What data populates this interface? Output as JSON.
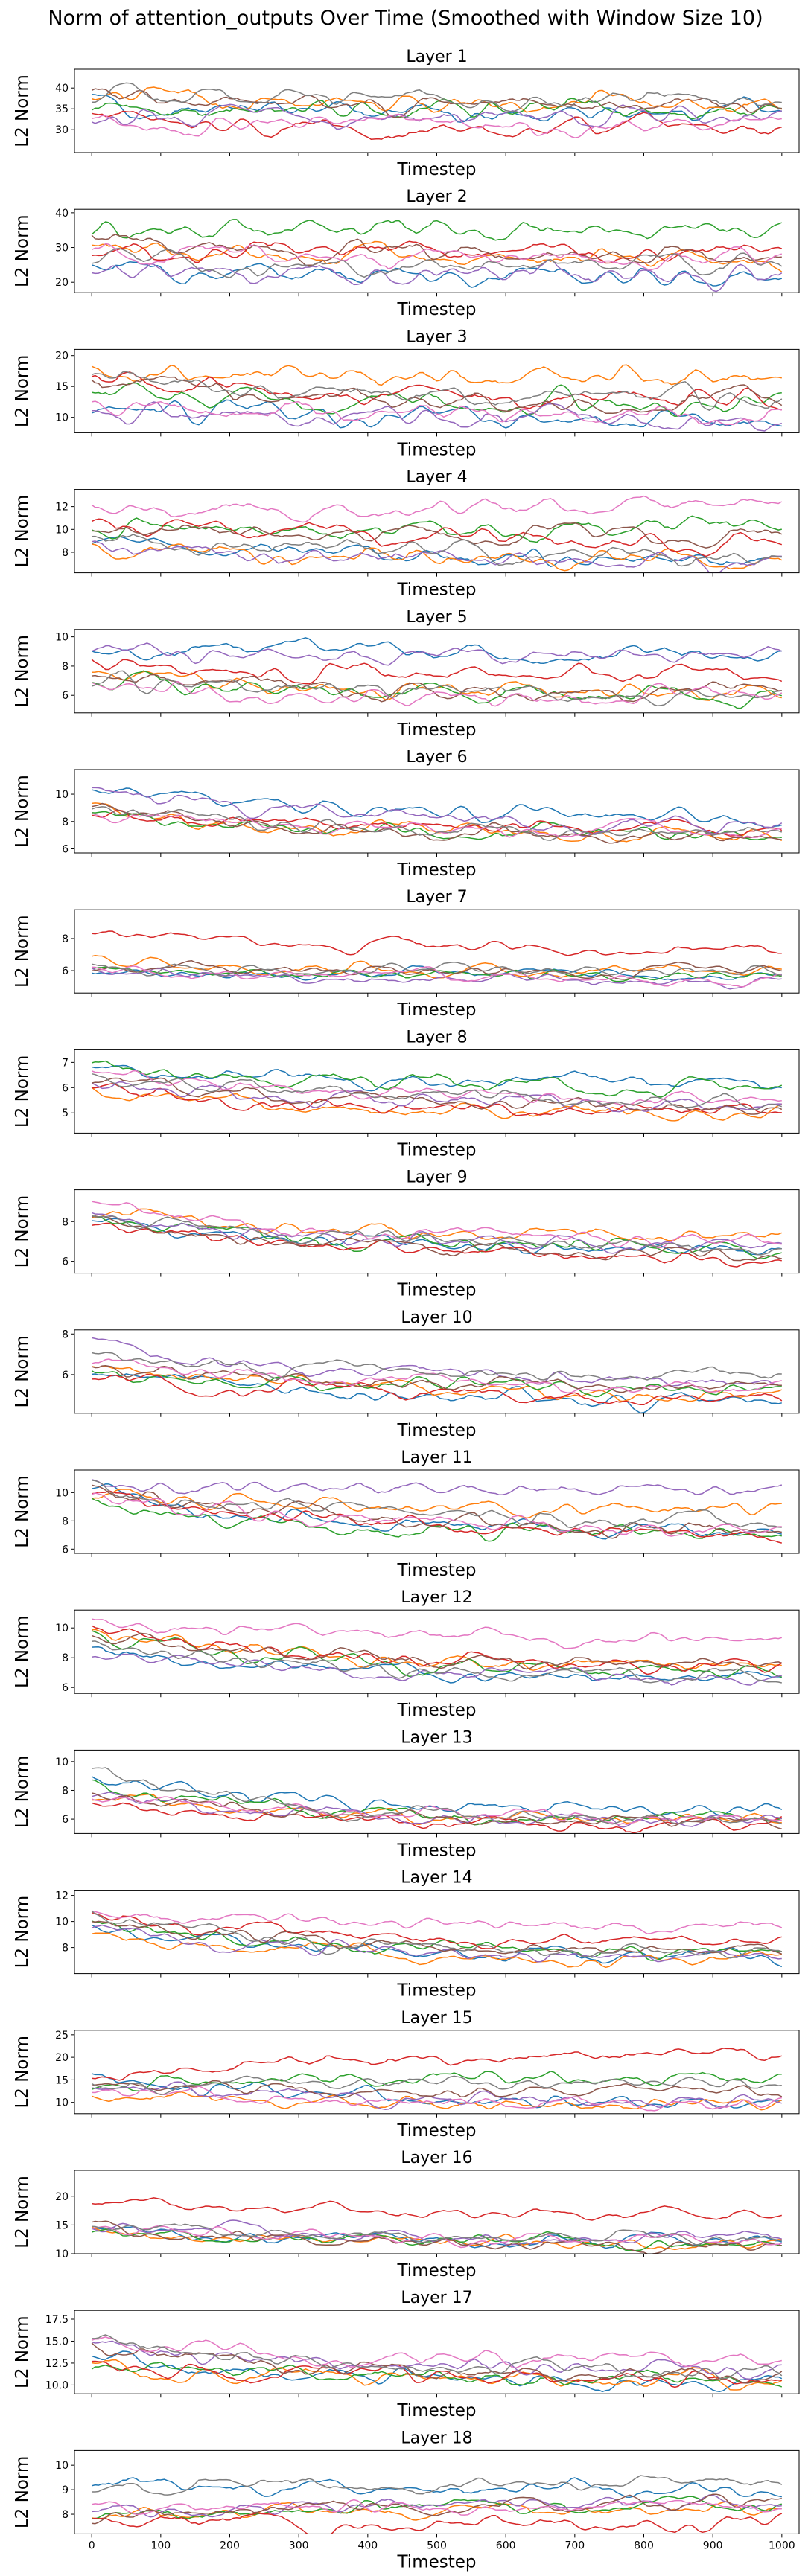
{
  "figure": {
    "title": "Norm of attention_outputs Over Time (Smoothed with Window Size 10)"
  },
  "colors": [
    "#1f77b4",
    "#ff7f0e",
    "#2ca02c",
    "#d62728",
    "#9467bd",
    "#8c564b",
    "#e377c2",
    "#7f7f7f"
  ],
  "chart_data": [
    {
      "type": "line",
      "title": "Layer 1",
      "xlabel": "Timestep",
      "ylabel": "L2 Norm",
      "xlim": [
        -25,
        1025
      ],
      "ylim": [
        24.5,
        44.5
      ],
      "x_ticks": [
        0,
        100,
        200,
        300,
        400,
        500,
        600,
        700,
        800,
        900,
        1000
      ],
      "y_ticks": [
        30,
        35,
        40
      ],
      "show_x_tick_labels": false,
      "noise": 2.0,
      "series": [
        {
          "start": 36,
          "end": 34
        },
        {
          "start": 38,
          "end": 37
        },
        {
          "start": 36,
          "end": 35
        },
        {
          "start": 33,
          "end": 30
        },
        {
          "start": 34,
          "end": 33
        },
        {
          "start": 38,
          "end": 36
        },
        {
          "start": 32,
          "end": 31
        },
        {
          "start": 39,
          "end": 37
        }
      ]
    },
    {
      "type": "line",
      "title": "Layer 2",
      "xlabel": "Timestep",
      "ylabel": "L2 Norm",
      "xlim": [
        -25,
        1025
      ],
      "ylim": [
        17,
        41
      ],
      "x_ticks": [
        0,
        100,
        200,
        300,
        400,
        500,
        600,
        700,
        800,
        900,
        1000
      ],
      "y_ticks": [
        20,
        30,
        40
      ],
      "show_x_tick_labels": false,
      "noise": 2.5,
      "series": [
        {
          "start": 25,
          "end": 22
        },
        {
          "start": 30,
          "end": 27
        },
        {
          "start": 34,
          "end": 36
        },
        {
          "start": 28,
          "end": 29
        },
        {
          "start": 24,
          "end": 22
        },
        {
          "start": 32,
          "end": 28
        },
        {
          "start": 30,
          "end": 26
        },
        {
          "start": 27,
          "end": 25
        }
      ]
    },
    {
      "type": "line",
      "title": "Layer 3",
      "xlabel": "Timestep",
      "ylabel": "L2 Norm",
      "xlim": [
        -25,
        1025
      ],
      "ylim": [
        7.5,
        21
      ],
      "x_ticks": [
        0,
        100,
        200,
        300,
        400,
        500,
        600,
        700,
        800,
        900,
        1000
      ],
      "y_ticks": [
        10,
        15,
        20
      ],
      "show_x_tick_labels": false,
      "noise": 1.4,
      "series": [
        {
          "start": 12,
          "end": 9.5
        },
        {
          "start": 18,
          "end": 16
        },
        {
          "start": 15,
          "end": 12
        },
        {
          "start": 16,
          "end": 13
        },
        {
          "start": 11,
          "end": 9.5
        },
        {
          "start": 16,
          "end": 12
        },
        {
          "start": 13,
          "end": 10
        },
        {
          "start": 17,
          "end": 13
        }
      ]
    },
    {
      "type": "line",
      "title": "Layer 4",
      "xlabel": "Timestep",
      "ylabel": "L2 Norm",
      "xlim": [
        -25,
        1025
      ],
      "ylim": [
        6.2,
        13.5
      ],
      "x_ticks": [
        0,
        100,
        200,
        300,
        400,
        500,
        600,
        700,
        800,
        900,
        1000
      ],
      "y_ticks": [
        8,
        10,
        12
      ],
      "show_x_tick_labels": false,
      "noise": 0.7,
      "series": [
        {
          "start": 9,
          "end": 7.2
        },
        {
          "start": 9,
          "end": 7.4
        },
        {
          "start": 10.5,
          "end": 10
        },
        {
          "start": 10,
          "end": 9
        },
        {
          "start": 8.5,
          "end": 7.2
        },
        {
          "start": 10.5,
          "end": 9.5
        },
        {
          "start": 12,
          "end": 12
        },
        {
          "start": 9.5,
          "end": 7.5
        }
      ]
    },
    {
      "type": "line",
      "title": "Layer 5",
      "xlabel": "Timestep",
      "ylabel": "L2 Norm",
      "xlim": [
        -25,
        1025
      ],
      "ylim": [
        4.8,
        10.5
      ],
      "x_ticks": [
        0,
        100,
        200,
        300,
        400,
        500,
        600,
        700,
        800,
        900,
        1000
      ],
      "y_ticks": [
        6,
        8,
        10
      ],
      "show_x_tick_labels": false,
      "noise": 0.5,
      "series": [
        {
          "start": 9.5,
          "end": 8.8
        },
        {
          "start": 7.5,
          "end": 6
        },
        {
          "start": 7,
          "end": 6
        },
        {
          "start": 8,
          "end": 7.5
        },
        {
          "start": 9,
          "end": 8.8
        },
        {
          "start": 7.5,
          "end": 6.2
        },
        {
          "start": 6.5,
          "end": 5.8
        },
        {
          "start": 7,
          "end": 6.2
        }
      ]
    },
    {
      "type": "line",
      "title": "Layer 6",
      "xlabel": "Timestep",
      "ylabel": "L2 Norm",
      "xlim": [
        -25,
        1025
      ],
      "ylim": [
        5.7,
        11.8
      ],
      "x_ticks": [
        0,
        100,
        200,
        300,
        400,
        500,
        600,
        700,
        800,
        900,
        1000
      ],
      "y_ticks": [
        6,
        8,
        10
      ],
      "show_x_tick_labels": false,
      "noise": 0.45,
      "series": [
        {
          "start": 10.5,
          "end": 8.2
        },
        {
          "start": 9,
          "end": 7
        },
        {
          "start": 8.5,
          "end": 6.8
        },
        {
          "start": 9,
          "end": 7.5
        },
        {
          "start": 10.5,
          "end": 7.5
        },
        {
          "start": 9,
          "end": 6.8
        },
        {
          "start": 8.5,
          "end": 7.2
        },
        {
          "start": 9,
          "end": 7
        }
      ]
    },
    {
      "type": "line",
      "title": "Layer 7",
      "xlabel": "Timestep",
      "ylabel": "L2 Norm",
      "xlim": [
        -25,
        1025
      ],
      "ylim": [
        4.6,
        9.8
      ],
      "x_ticks": [
        0,
        100,
        200,
        300,
        400,
        500,
        600,
        700,
        800,
        900,
        1000
      ],
      "y_ticks": [
        6,
        8
      ],
      "show_x_tick_labels": false,
      "noise": 0.3,
      "series": [
        {
          "start": 6,
          "end": 5.8
        },
        {
          "start": 6.5,
          "end": 5.9
        },
        {
          "start": 6.2,
          "end": 5.7
        },
        {
          "start": 8.5,
          "end": 7.2
        },
        {
          "start": 6,
          "end": 5.2
        },
        {
          "start": 6.3,
          "end": 5.8
        },
        {
          "start": 6,
          "end": 5.5
        },
        {
          "start": 6.3,
          "end": 6
        }
      ]
    },
    {
      "type": "line",
      "title": "Layer 8",
      "xlabel": "Timestep",
      "ylabel": "L2 Norm",
      "xlim": [
        -25,
        1025
      ],
      "ylim": [
        4.2,
        7.5
      ],
      "x_ticks": [
        0,
        100,
        200,
        300,
        400,
        500,
        600,
        700,
        800,
        900,
        1000
      ],
      "y_ticks": [
        5,
        6,
        7
      ],
      "show_x_tick_labels": false,
      "noise": 0.25,
      "series": [
        {
          "start": 6.8,
          "end": 6.2
        },
        {
          "start": 6,
          "end": 4.9
        },
        {
          "start": 6.9,
          "end": 6
        },
        {
          "start": 6,
          "end": 5
        },
        {
          "start": 6.2,
          "end": 5.3
        },
        {
          "start": 6.3,
          "end": 5.2
        },
        {
          "start": 6.5,
          "end": 5.5
        },
        {
          "start": 6.6,
          "end": 5.4
        }
      ]
    },
    {
      "type": "line",
      "title": "Layer 9",
      "xlabel": "Timestep",
      "ylabel": "L2 Norm",
      "xlim": [
        -25,
        1025
      ],
      "ylim": [
        5.4,
        9.6
      ],
      "x_ticks": [
        0,
        100,
        200,
        300,
        400,
        500,
        600,
        700,
        800,
        900,
        1000
      ],
      "y_ticks": [
        6,
        8
      ],
      "show_x_tick_labels": false,
      "noise": 0.3,
      "series": [
        {
          "start": 8.2,
          "end": 6.4
        },
        {
          "start": 8.5,
          "end": 7.2
        },
        {
          "start": 8.2,
          "end": 6.5
        },
        {
          "start": 8,
          "end": 6.2
        },
        {
          "start": 8.3,
          "end": 6.6
        },
        {
          "start": 8.2,
          "end": 6.3
        },
        {
          "start": 9,
          "end": 7
        },
        {
          "start": 8.4,
          "end": 6.6
        }
      ]
    },
    {
      "type": "line",
      "title": "Layer 10",
      "xlabel": "Timestep",
      "ylabel": "L2 Norm",
      "xlim": [
        -25,
        1025
      ],
      "ylim": [
        4.1,
        8.2
      ],
      "x_ticks": [
        0,
        100,
        200,
        300,
        400,
        500,
        600,
        700,
        800,
        900,
        1000
      ],
      "y_ticks": [
        6,
        8
      ],
      "show_x_tick_labels": false,
      "noise": 0.3,
      "series": [
        {
          "start": 6,
          "end": 4.6
        },
        {
          "start": 6.5,
          "end": 4.9
        },
        {
          "start": 6.3,
          "end": 5.2
        },
        {
          "start": 6,
          "end": 4.8
        },
        {
          "start": 7.5,
          "end": 5.6
        },
        {
          "start": 6.2,
          "end": 5.4
        },
        {
          "start": 6.8,
          "end": 5.3
        },
        {
          "start": 7,
          "end": 5.9
        }
      ]
    },
    {
      "type": "line",
      "title": "Layer 11",
      "xlabel": "Timestep",
      "ylabel": "L2 Norm",
      "xlim": [
        -25,
        1025
      ],
      "ylim": [
        5.7,
        11.6
      ],
      "x_ticks": [
        0,
        100,
        200,
        300,
        400,
        500,
        600,
        700,
        800,
        900,
        1000
      ],
      "y_ticks": [
        6,
        8,
        10
      ],
      "show_x_tick_labels": false,
      "noise": 0.45,
      "series": [
        {
          "start": 10,
          "end": 7
        },
        {
          "start": 10,
          "end": 8.8
        },
        {
          "start": 9.5,
          "end": 6.8
        },
        {
          "start": 10,
          "end": 7
        },
        {
          "start": 10.5,
          "end": 10
        },
        {
          "start": 10.5,
          "end": 7.3
        },
        {
          "start": 10,
          "end": 7.2
        },
        {
          "start": 10.5,
          "end": 7.8
        }
      ]
    },
    {
      "type": "line",
      "title": "Layer 12",
      "xlabel": "Timestep",
      "ylabel": "L2 Norm",
      "xlim": [
        -25,
        1025
      ],
      "ylim": [
        5.6,
        11.2
      ],
      "x_ticks": [
        0,
        100,
        200,
        300,
        400,
        500,
        600,
        700,
        800,
        900,
        1000
      ],
      "y_ticks": [
        6,
        8,
        10
      ],
      "show_x_tick_labels": false,
      "noise": 0.4,
      "series": [
        {
          "start": 8.5,
          "end": 6.6
        },
        {
          "start": 10,
          "end": 7.2
        },
        {
          "start": 9.5,
          "end": 7
        },
        {
          "start": 10,
          "end": 7.3
        },
        {
          "start": 8.5,
          "end": 6.5
        },
        {
          "start": 9.5,
          "end": 7.5
        },
        {
          "start": 10.5,
          "end": 9.2
        },
        {
          "start": 9,
          "end": 6.8
        }
      ]
    },
    {
      "type": "line",
      "title": "Layer 13",
      "xlabel": "Timestep",
      "ylabel": "L2 Norm",
      "xlim": [
        -25,
        1025
      ],
      "ylim": [
        5,
        10.8
      ],
      "x_ticks": [
        0,
        100,
        200,
        300,
        400,
        500,
        600,
        700,
        800,
        900,
        1000
      ],
      "y_ticks": [
        6,
        8,
        10
      ],
      "show_x_tick_labels": false,
      "noise": 0.4,
      "series": [
        {
          "start": 9,
          "end": 6.5
        },
        {
          "start": 7.5,
          "end": 5.8
        },
        {
          "start": 8.2,
          "end": 5.8
        },
        {
          "start": 7.2,
          "end": 5.5
        },
        {
          "start": 7.8,
          "end": 5.6
        },
        {
          "start": 7.6,
          "end": 5.7
        },
        {
          "start": 7.8,
          "end": 5.9
        },
        {
          "start": 9.2,
          "end": 5.7
        }
      ]
    },
    {
      "type": "line",
      "title": "Layer 14",
      "xlabel": "Timestep",
      "ylabel": "L2 Norm",
      "xlim": [
        -25,
        1025
      ],
      "ylim": [
        6,
        12.4
      ],
      "x_ticks": [
        0,
        100,
        200,
        300,
        400,
        500,
        600,
        700,
        800,
        900,
        1000
      ],
      "y_ticks": [
        8,
        10,
        12
      ],
      "show_x_tick_labels": false,
      "noise": 0.45,
      "series": [
        {
          "start": 9.5,
          "end": 7.1
        },
        {
          "start": 9,
          "end": 7
        },
        {
          "start": 10,
          "end": 7.4
        },
        {
          "start": 10.5,
          "end": 8.3
        },
        {
          "start": 9.5,
          "end": 7.1
        },
        {
          "start": 10,
          "end": 7.6
        },
        {
          "start": 11,
          "end": 9.5
        },
        {
          "start": 10.5,
          "end": 7.3
        }
      ]
    },
    {
      "type": "line",
      "title": "Layer 15",
      "xlabel": "Timestep",
      "ylabel": "L2 Norm",
      "xlim": [
        -25,
        1025
      ],
      "ylim": [
        7.5,
        26
      ],
      "x_ticks": [
        0,
        100,
        200,
        300,
        400,
        500,
        600,
        700,
        800,
        900,
        1000
      ],
      "y_ticks": [
        10,
        15,
        20,
        25
      ],
      "show_x_tick_labels": false,
      "noise": 1.3,
      "series": [
        {
          "start": 15,
          "end": 10
        },
        {
          "start": 12,
          "end": 9.5
        },
        {
          "start": 14,
          "end": 16
        },
        {
          "start": 15,
          "end": 21
        },
        {
          "start": 14,
          "end": 10
        },
        {
          "start": 13,
          "end": 13
        },
        {
          "start": 12,
          "end": 9.6
        },
        {
          "start": 14,
          "end": 14
        }
      ]
    },
    {
      "type": "line",
      "title": "Layer 16",
      "xlabel": "Timestep",
      "ylabel": "L2 Norm",
      "xlim": [
        -25,
        1025
      ],
      "ylim": [
        10,
        24.5
      ],
      "x_ticks": [
        0,
        100,
        200,
        300,
        400,
        500,
        600,
        700,
        800,
        900,
        1000
      ],
      "y_ticks": [
        10,
        15,
        20
      ],
      "show_x_tick_labels": false,
      "noise": 0.9,
      "series": [
        {
          "start": 14,
          "end": 12
        },
        {
          "start": 14.5,
          "end": 11.5
        },
        {
          "start": 14,
          "end": 11.8
        },
        {
          "start": 19,
          "end": 16.5
        },
        {
          "start": 15,
          "end": 12.3
        },
        {
          "start": 14.5,
          "end": 11.2
        },
        {
          "start": 14.8,
          "end": 12
        },
        {
          "start": 15.5,
          "end": 12.5
        }
      ]
    },
    {
      "type": "line",
      "title": "Layer 17",
      "xlabel": "Timestep",
      "ylabel": "L2 Norm",
      "xlim": [
        -25,
        1025
      ],
      "ylim": [
        9,
        18.5
      ],
      "x_ticks": [
        0,
        100,
        200,
        300,
        400,
        500,
        600,
        700,
        800,
        900,
        1000
      ],
      "y_ticks": [
        10.0,
        12.5,
        15.0,
        17.5
      ],
      "y_tick_labels": [
        "10.0",
        "12.5",
        "15.0",
        "17.5"
      ],
      "show_x_tick_labels": false,
      "noise": 0.8,
      "series": [
        {
          "start": 13,
          "end": 10.2
        },
        {
          "start": 12,
          "end": 10.5
        },
        {
          "start": 12.5,
          "end": 10.6
        },
        {
          "start": 12.5,
          "end": 10.4
        },
        {
          "start": 15,
          "end": 11.8
        },
        {
          "start": 14,
          "end": 11
        },
        {
          "start": 15,
          "end": 12.5
        },
        {
          "start": 15.5,
          "end": 11.2
        }
      ]
    },
    {
      "type": "line",
      "title": "Layer 18",
      "xlabel": "Timestep",
      "ylabel": "L2 Norm",
      "xlim": [
        -25,
        1025
      ],
      "ylim": [
        7.2,
        10.6
      ],
      "x_ticks": [
        0,
        100,
        200,
        300,
        400,
        500,
        600,
        700,
        800,
        900,
        1000
      ],
      "y_ticks": [
        8,
        9,
        10
      ],
      "show_x_tick_labels": true,
      "noise": 0.25,
      "series": [
        {
          "start": 9.3,
          "end": 9
        },
        {
          "start": 8,
          "end": 8.3
        },
        {
          "start": 7.9,
          "end": 8.4
        },
        {
          "start": 7.6,
          "end": 7.7
        },
        {
          "start": 8,
          "end": 8.5
        },
        {
          "start": 7.9,
          "end": 8.5
        },
        {
          "start": 8.4,
          "end": 8.3
        },
        {
          "start": 9,
          "end": 9.3
        }
      ]
    }
  ]
}
